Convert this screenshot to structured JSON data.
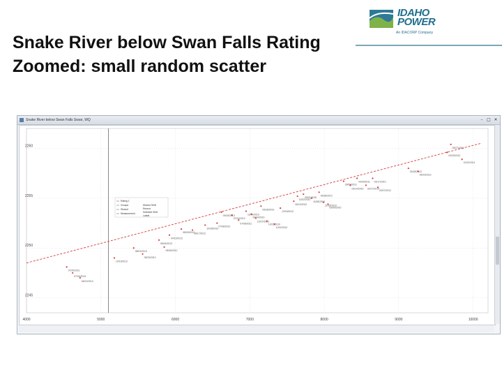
{
  "slide": {
    "title_line1": "Snake River below Swan Falls Rating",
    "title_line2": "Zoomed: small random scatter"
  },
  "logo": {
    "word_line1": "IDAHO",
    "word_line2": "POWER",
    "tagline": "An IDACORP Company"
  },
  "window": {
    "title": "Snake River below Swan Falls Swan, WQ",
    "minimize": "–",
    "maximize": "□",
    "close": "✕"
  },
  "chart_data": {
    "type": "scatter",
    "x_ticks": [
      "4000",
      "5000",
      "6000",
      "7000",
      "8000",
      "9000",
      "10000"
    ],
    "y_ticks": [
      "2260",
      "2255",
      "2250",
      "2245"
    ],
    "x_range": [
      4000,
      10200
    ],
    "y_range": [
      2243.5,
      2262
    ],
    "rating_curve": {
      "color": "#d43a3a",
      "style": "dashed",
      "x": [
        4000,
        10100
      ],
      "y": [
        2248.5,
        2260.5
      ]
    },
    "cursor_x": 5100,
    "legend": {
      "rows": [
        "Rating 1",
        "Groups",
        "Shared",
        "Measurement"
      ],
      "cols": [
        "Shared Shift",
        "Recent",
        "Selected Shift",
        "Latest"
      ]
    },
    "points": [
      {
        "x": 4540,
        "y": 2248.1,
        "label": "07/29/2011"
      },
      {
        "x": 4620,
        "y": 2247.5,
        "label": "07/30/2013"
      },
      {
        "x": 4720,
        "y": 2247.0,
        "label": "06/11/2013"
      },
      {
        "x": 5180,
        "y": 2249.0,
        "label": "10/19/2012"
      },
      {
        "x": 5440,
        "y": 2250.0,
        "label": "08/01/2013"
      },
      {
        "x": 5560,
        "y": 2249.4,
        "label": "05/23/2012"
      },
      {
        "x": 5780,
        "y": 2250.8,
        "label": "08/04/2013"
      },
      {
        "x": 5850,
        "y": 2250.1,
        "label": "09/06/2012"
      },
      {
        "x": 5920,
        "y": 2251.3,
        "label": "04/10/2012"
      },
      {
        "x": 6080,
        "y": 2251.9,
        "label": "08/03/2012"
      },
      {
        "x": 6230,
        "y": 2251.8,
        "label": "08/17/2012"
      },
      {
        "x": 6400,
        "y": 2252.3,
        "label": "10/28/2013"
      },
      {
        "x": 6560,
        "y": 2252.5,
        "label": "07/08/2012"
      },
      {
        "x": 6620,
        "y": 2253.6,
        "label": "09/15/2013"
      },
      {
        "x": 6760,
        "y": 2253.3,
        "label": "07/24/2012"
      },
      {
        "x": 6850,
        "y": 2252.8,
        "label": "07/08/2011"
      },
      {
        "x": 6950,
        "y": 2253.7,
        "label": "11/09/2013"
      },
      {
        "x": 7020,
        "y": 2253.4,
        "label": "09/24/2010"
      },
      {
        "x": 7080,
        "y": 2253.0,
        "label": "10/27/2013"
      },
      {
        "x": 7150,
        "y": 2254.2,
        "label": "09/28/2013"
      },
      {
        "x": 7230,
        "y": 2252.7,
        "label": "10/21/2010"
      },
      {
        "x": 7330,
        "y": 2252.4,
        "label": "11/02/2012"
      },
      {
        "x": 7410,
        "y": 2254.0,
        "label": "12/03/2012"
      },
      {
        "x": 7590,
        "y": 2254.7,
        "label": "06/10/2012"
      },
      {
        "x": 7640,
        "y": 2255.2,
        "label": "11/02/2012"
      },
      {
        "x": 7720,
        "y": 2255.4,
        "label": "09/21/2010"
      },
      {
        "x": 7830,
        "y": 2255.0,
        "label": "11/08/2010"
      },
      {
        "x": 7930,
        "y": 2255.6,
        "label": "09/28/2010"
      },
      {
        "x": 7990,
        "y": 2254.6,
        "label": "11/18/2010"
      },
      {
        "x": 8050,
        "y": 2254.4,
        "label": "03/05/2010"
      },
      {
        "x": 8260,
        "y": 2256.7,
        "label": "09/09/2012"
      },
      {
        "x": 8350,
        "y": 2256.3,
        "label": "03/14/2010"
      },
      {
        "x": 8440,
        "y": 2257.0,
        "label": "04/29/2011"
      },
      {
        "x": 8560,
        "y": 2256.3,
        "label": "03/17/2010"
      },
      {
        "x": 8650,
        "y": 2257.0,
        "label": "03/17/2010"
      },
      {
        "x": 8720,
        "y": 2256.1,
        "label": "02/07/2012"
      },
      {
        "x": 9130,
        "y": 2258.0,
        "label": "03/18/2013"
      },
      {
        "x": 9260,
        "y": 2257.7,
        "label": "09/23/2012"
      },
      {
        "x": 9650,
        "y": 2259.6,
        "label": "03/25/2012"
      },
      {
        "x": 9700,
        "y": 2260.4,
        "label": "09/27/2011"
      },
      {
        "x": 9850,
        "y": 2258.9,
        "label": "10/22/2011"
      }
    ]
  }
}
